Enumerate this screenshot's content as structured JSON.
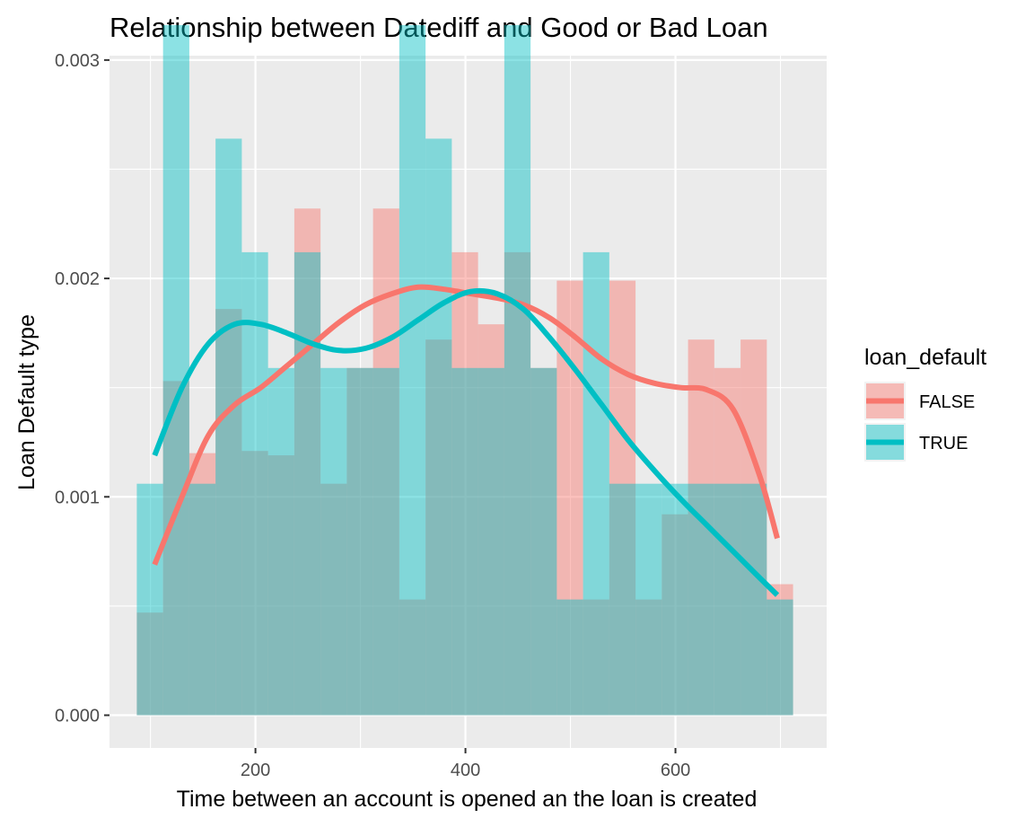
{
  "chart_data": {
    "type": "bar",
    "subtype": "overlaid histogram with density curves",
    "title": "Relationship between Datediff and Good or Bad Loan",
    "xlabel": "Time between an account is opened an the loan is created",
    "ylabel": "Loan Default type",
    "xlim": [
      61,
      744
    ],
    "ylim": [
      -0.00015,
      0.0030015
    ],
    "ylim_max": 0.00302,
    "x_ticks": [
      {
        "value": 200,
        "label": "200"
      },
      {
        "value": 400,
        "label": "400"
      },
      {
        "value": 600,
        "label": "600"
      }
    ],
    "y_ticks": [
      {
        "value": 0,
        "label": "0.000"
      },
      {
        "value": 0.001,
        "label": "0.001"
      },
      {
        "value": 0.002,
        "label": "0.002"
      },
      {
        "value": 0.003,
        "label": "0.003"
      }
    ],
    "grid": true,
    "bin_width": 25,
    "bin_start": 87,
    "legend": {
      "title": "loan_default",
      "position": "right"
    },
    "series": [
      {
        "name": "FALSE",
        "color": "#F8766D",
        "histogram": [
          0.00047,
          0.00153,
          0.0012,
          0.00186,
          0.00121,
          0.00119,
          0.00232,
          0.00106,
          0.00159,
          0.00232,
          0.00053,
          0.00172,
          0.00212,
          0.00179,
          0.00212,
          0.00159,
          0.00199,
          0.00053,
          0.00199,
          0.00053,
          0.00092,
          0.00172,
          0.00159,
          0.00172,
          0.0006
        ],
        "density": [
          [
            104,
            0.00069
          ],
          [
            130,
            0.001
          ],
          [
            155,
            0.00128
          ],
          [
            180,
            0.00142
          ],
          [
            205,
            0.0015
          ],
          [
            230,
            0.0016
          ],
          [
            255,
            0.0017
          ],
          [
            280,
            0.0018
          ],
          [
            305,
            0.00188
          ],
          [
            330,
            0.00193
          ],
          [
            355,
            0.00196
          ],
          [
            380,
            0.00195
          ],
          [
            405,
            0.00193
          ],
          [
            430,
            0.00191
          ],
          [
            455,
            0.00188
          ],
          [
            480,
            0.00182
          ],
          [
            505,
            0.00173
          ],
          [
            530,
            0.00163
          ],
          [
            555,
            0.00156
          ],
          [
            580,
            0.00152
          ],
          [
            605,
            0.0015
          ],
          [
            630,
            0.00149
          ],
          [
            655,
            0.0014
          ],
          [
            680,
            0.0011
          ],
          [
            697,
            0.00081
          ]
        ]
      },
      {
        "name": "TRUE",
        "color": "#00BFC4",
        "histogram": [
          0.00106,
          0.00316,
          0.00106,
          0.00264,
          0.00212,
          0.00159,
          0.00212,
          0.00159,
          0.00159,
          0.00159,
          0.00316,
          0.00264,
          0.00159,
          0.00159,
          0.00316,
          0.00159,
          0.00053,
          0.00212,
          0.00106,
          0.00106,
          0.00106,
          0.00106,
          0.00106,
          0.00106,
          0.00053
        ],
        "density": [
          [
            104,
            0.00119
          ],
          [
            130,
            0.0015
          ],
          [
            155,
            0.0017
          ],
          [
            180,
            0.00179
          ],
          [
            205,
            0.00179
          ],
          [
            230,
            0.00175
          ],
          [
            255,
            0.0017
          ],
          [
            280,
            0.00167
          ],
          [
            305,
            0.00168
          ],
          [
            330,
            0.00173
          ],
          [
            355,
            0.00181
          ],
          [
            380,
            0.00189
          ],
          [
            405,
            0.00194
          ],
          [
            430,
            0.00193
          ],
          [
            455,
            0.00186
          ],
          [
            480,
            0.00173
          ],
          [
            505,
            0.00158
          ],
          [
            530,
            0.00142
          ],
          [
            555,
            0.00126
          ],
          [
            580,
            0.00112
          ],
          [
            605,
            0.00099
          ],
          [
            630,
            0.00087
          ],
          [
            655,
            0.00075
          ],
          [
            680,
            0.00063
          ],
          [
            697,
            0.00055
          ]
        ]
      }
    ]
  }
}
